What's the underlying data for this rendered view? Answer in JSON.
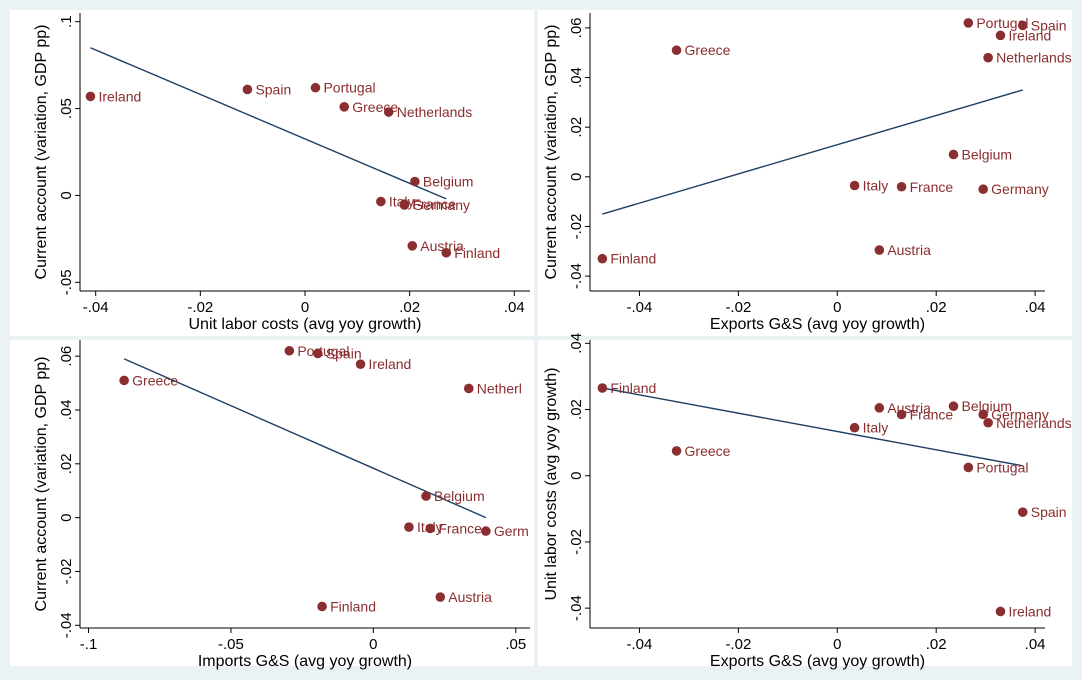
{
  "chart_data": [
    {
      "type": "scatter",
      "title": "",
      "xlabel": "Unit labor costs (avg yoy growth)",
      "ylabel": "Current account (variation, GDP pp)",
      "xlim": [
        -0.043,
        0.043
      ],
      "ylim": [
        -0.055,
        0.105
      ],
      "xticks": [
        -0.04,
        -0.02,
        0,
        0.02,
        0.04
      ],
      "xtick_labels": [
        "-.04",
        "-.02",
        "0",
        ".02",
        ".04"
      ],
      "yticks": [
        -0.05,
        0,
        0.05,
        0.1
      ],
      "ytick_labels": [
        "-.05",
        "0",
        ".05",
        ".1"
      ],
      "grid": false,
      "points": [
        {
          "label": "Ireland",
          "x": -0.041,
          "y": 0.057
        },
        {
          "label": "Spain",
          "x": -0.011,
          "y": 0.061
        },
        {
          "label": "Portugal",
          "x": 0.002,
          "y": 0.062
        },
        {
          "label": "Greece",
          "x": 0.0075,
          "y": 0.051
        },
        {
          "label": "Netherlands",
          "x": 0.016,
          "y": 0.048
        },
        {
          "label": "Belgium",
          "x": 0.021,
          "y": 0.008
        },
        {
          "label": "Italy",
          "x": 0.0145,
          "y": -0.0035
        },
        {
          "label": "France",
          "x": 0.019,
          "y": -0.005
        },
        {
          "label": "Germany",
          "x": 0.019,
          "y": -0.0055
        },
        {
          "label": "Austria",
          "x": 0.0205,
          "y": -0.029
        },
        {
          "label": "Finland",
          "x": 0.027,
          "y": -0.033
        }
      ],
      "fit_line": {
        "x": [
          -0.041,
          0.027
        ],
        "y": [
          0.085,
          -0.002
        ]
      }
    },
    {
      "type": "scatter",
      "title": "",
      "xlabel": "Exports G&S (avg yoy growth)",
      "ylabel": "Current account (variation, GDP pp)",
      "xlim": [
        -0.05,
        0.042
      ],
      "ylim": [
        -0.046,
        0.066
      ],
      "xticks": [
        -0.04,
        -0.02,
        0,
        0.02,
        0.04
      ],
      "xtick_labels": [
        "-.04",
        "-.02",
        "0",
        ".02",
        ".04"
      ],
      "yticks": [
        -0.04,
        -0.02,
        0,
        0.02,
        0.04,
        0.06
      ],
      "ytick_labels": [
        "-.04",
        "-.02",
        "0",
        ".02",
        ".04",
        ".06"
      ],
      "grid": false,
      "points": [
        {
          "label": "Greece",
          "x": -0.0325,
          "y": 0.051
        },
        {
          "label": "Portugal",
          "x": 0.0265,
          "y": 0.062
        },
        {
          "label": "Spain",
          "x": 0.0375,
          "y": 0.061
        },
        {
          "label": "Ireland",
          "x": 0.033,
          "y": 0.057
        },
        {
          "label": "Netherlands",
          "x": 0.0305,
          "y": 0.048
        },
        {
          "label": "Belgium",
          "x": 0.0235,
          "y": 0.009
        },
        {
          "label": "Italy",
          "x": 0.0035,
          "y": -0.0035
        },
        {
          "label": "France",
          "x": 0.013,
          "y": -0.004
        },
        {
          "label": "Germany",
          "x": 0.0295,
          "y": -0.005
        },
        {
          "label": "Austria",
          "x": 0.0085,
          "y": -0.0295
        },
        {
          "label": "Finland",
          "x": -0.0475,
          "y": -0.033
        }
      ],
      "fit_line": {
        "x": [
          -0.0475,
          0.0375
        ],
        "y": [
          -0.015,
          0.035
        ]
      }
    },
    {
      "type": "scatter",
      "title": "",
      "xlabel": "Imports G&S (avg yoy growth)",
      "ylabel": "Current account (variation, GDP pp)",
      "xlim": [
        -0.103,
        0.055
      ],
      "ylim": [
        -0.041,
        0.066
      ],
      "xticks": [
        -0.1,
        -0.05,
        0,
        0.05
      ],
      "xtick_labels": [
        "-.1",
        "-.05",
        "0",
        ".05"
      ],
      "yticks": [
        -0.04,
        -0.02,
        0,
        0.02,
        0.04,
        0.06
      ],
      "ytick_labels": [
        "-.04",
        "-.02",
        "0",
        ".02",
        ".04",
        ".06"
      ],
      "grid": false,
      "points": [
        {
          "label": "Greece",
          "x": -0.0875,
          "y": 0.051
        },
        {
          "label": "Portugal",
          "x": -0.0295,
          "y": 0.062
        },
        {
          "label": "Spain",
          "x": -0.0195,
          "y": 0.061
        },
        {
          "label": "Ireland",
          "x": -0.0045,
          "y": 0.057
        },
        {
          "label": "Netherl",
          "x": 0.0335,
          "y": 0.048
        },
        {
          "label": "Belgium",
          "x": 0.0185,
          "y": 0.008
        },
        {
          "label": "Italy",
          "x": 0.0125,
          "y": -0.0035
        },
        {
          "label": "France",
          "x": 0.02,
          "y": -0.004
        },
        {
          "label": "Germ",
          "x": 0.0395,
          "y": -0.005
        },
        {
          "label": "Austria",
          "x": 0.0235,
          "y": -0.0295
        },
        {
          "label": "Finland",
          "x": -0.018,
          "y": -0.033
        }
      ],
      "fit_line": {
        "x": [
          -0.0875,
          0.0395
        ],
        "y": [
          0.059,
          0.0
        ]
      }
    },
    {
      "type": "scatter",
      "title": "",
      "xlabel": "Exports G&S (avg yoy growth)",
      "ylabel": "Unit labor costs (avg yoy growth)",
      "xlim": [
        -0.05,
        0.042
      ],
      "ylim": [
        -0.046,
        0.041
      ],
      "xticks": [
        -0.04,
        -0.02,
        0,
        0.02,
        0.04
      ],
      "xtick_labels": [
        "-.04",
        "-.02",
        "0",
        ".02",
        ".04"
      ],
      "yticks": [
        -0.04,
        -0.02,
        0,
        0.02,
        0.04
      ],
      "ytick_labels": [
        "-.04",
        "-.02",
        "0",
        ".02",
        ".04"
      ],
      "grid": false,
      "points": [
        {
          "label": "Finland",
          "x": -0.0475,
          "y": 0.0265
        },
        {
          "label": "Greece",
          "x": -0.0325,
          "y": 0.0075
        },
        {
          "label": "Austria",
          "x": 0.0085,
          "y": 0.0205
        },
        {
          "label": "Belgium",
          "x": 0.0235,
          "y": 0.021
        },
        {
          "label": "France",
          "x": 0.013,
          "y": 0.0185
        },
        {
          "label": "Italy",
          "x": 0.0035,
          "y": 0.0145
        },
        {
          "label": "Germany",
          "x": 0.0295,
          "y": 0.0185
        },
        {
          "label": "Netherlands",
          "x": 0.0305,
          "y": 0.016
        },
        {
          "label": "Portugal",
          "x": 0.0265,
          "y": 0.0025
        },
        {
          "label": "Spain",
          "x": 0.0375,
          "y": -0.011
        },
        {
          "label": "Ireland",
          "x": 0.033,
          "y": -0.041
        }
      ],
      "fit_line": {
        "x": [
          -0.0475,
          0.0375
        ],
        "y": [
          0.0265,
          0.003
        ]
      }
    }
  ],
  "colors": {
    "background": "#eaf2f3",
    "plot_region": "#ffffff",
    "marker": "#8b2e30",
    "fit_line": "#1f3f61"
  }
}
